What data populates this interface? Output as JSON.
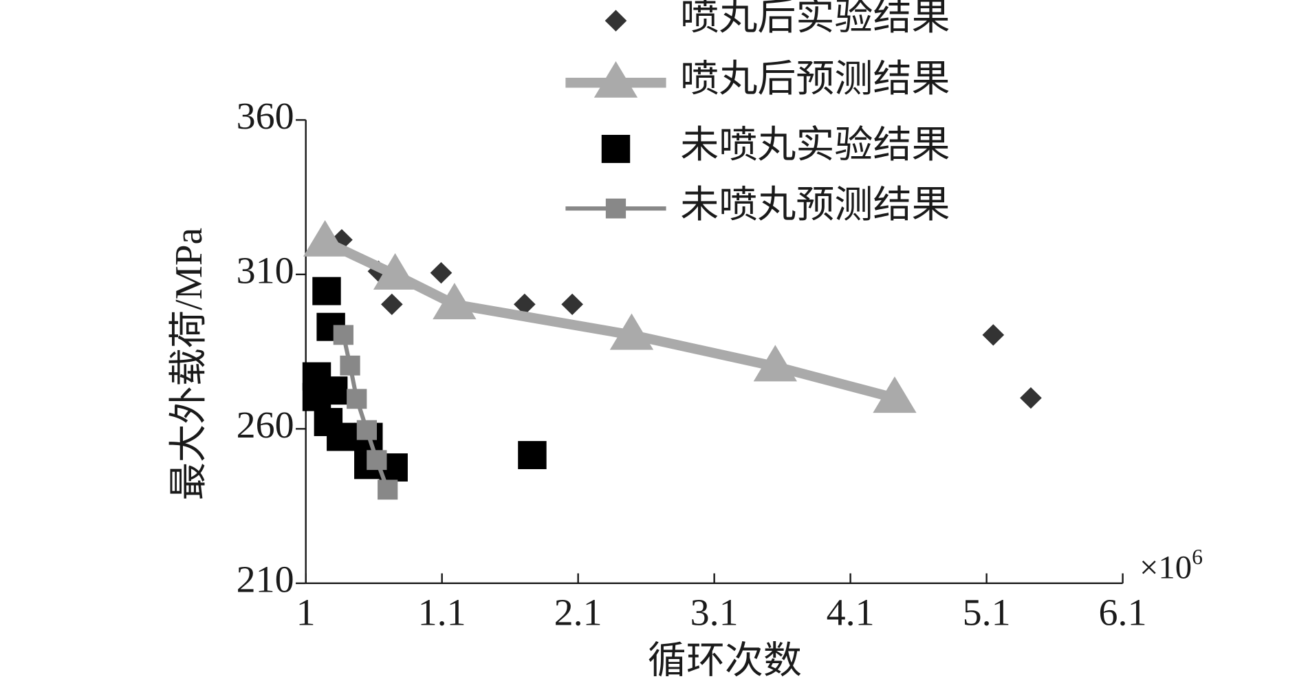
{
  "chart_data": {
    "type": "scatter",
    "x_label": "循环次数",
    "y_label": "最大外载荷/MPa",
    "x_multiplier": "×10",
    "x_multiplier_exp": "6",
    "xlim": [
      0.1,
      6.1
    ],
    "ylim": [
      210,
      360
    ],
    "xticks": [
      {
        "value": 0.1,
        "label": "1"
      },
      1.1,
      2.1,
      3.1,
      4.1,
      5.1,
      6.1
    ],
    "yticks": [
      210,
      260,
      310,
      360
    ],
    "series": [
      {
        "name": "喷丸后实验结果",
        "color": "#333333",
        "marker": "diamond",
        "line": false,
        "x": [
          0.364,
          0.634,
          0.732,
          1.094,
          1.707,
          2.057,
          5.149,
          5.425
        ],
        "values": [
          321.2,
          311.0,
          300.3,
          310.5,
          300.3,
          300.3,
          290.4,
          270.0
        ]
      },
      {
        "name": "喷丸后预测结果",
        "color": "#aaaaaa",
        "marker": "triangle",
        "line": true,
        "x": [
          0.241,
          0.756,
          1.192,
          2.493,
          3.548,
          4.425
        ],
        "values": [
          320.6,
          309.9,
          300.3,
          290.4,
          280.2,
          270.0
        ]
      },
      {
        "name": "未喷丸实验结果",
        "color": "#000000",
        "marker": "square",
        "line": false,
        "x": [
          0.253,
          0.284,
          0.18,
          0.18,
          0.302,
          0.265,
          0.358,
          0.56,
          0.56,
          0.744,
          1.763
        ],
        "values": [
          304.6,
          293.0,
          277.0,
          270.3,
          272.4,
          262.2,
          257.4,
          257.4,
          248.3,
          247.5,
          251.5
        ]
      },
      {
        "name": "未喷丸预测结果",
        "color": "#888888",
        "marker": "small-square",
        "line": true,
        "x": [
          0.376,
          0.425,
          0.474,
          0.548,
          0.621,
          0.701
        ],
        "values": [
          290.4,
          280.5,
          269.7,
          259.6,
          249.9,
          240.3
        ]
      }
    ]
  }
}
